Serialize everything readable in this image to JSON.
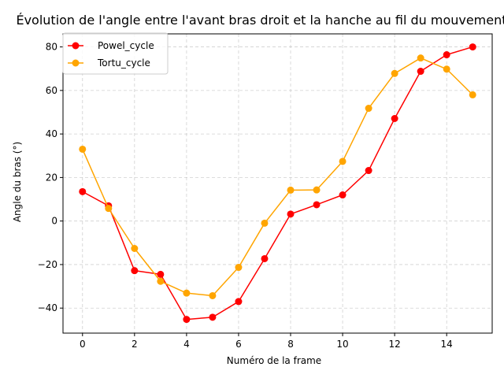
{
  "chart_data": {
    "type": "line",
    "title": "Évolution de l'angle entre l'avant bras droit et la hanche au fil du mouvement",
    "xlabel": "Numéro de la frame",
    "ylabel": "Angle du bras (°)",
    "xlim": [
      -0.75,
      15.75
    ],
    "ylim": [
      -51.5,
      86
    ],
    "x_ticks": [
      0,
      2,
      4,
      6,
      8,
      10,
      12,
      14
    ],
    "x_tick_labels": [
      "0",
      "2",
      "4",
      "6",
      "8",
      "10",
      "12",
      "14"
    ],
    "y_ticks": [
      -40,
      -20,
      0,
      20,
      40,
      60,
      80
    ],
    "y_tick_labels": [
      "−40",
      "−20",
      "0",
      "20",
      "40",
      "60",
      "80"
    ],
    "grid": true,
    "legend_position": "top-left",
    "x": [
      0,
      1,
      2,
      3,
      4,
      5,
      6,
      7,
      8,
      9,
      10,
      11,
      12,
      13,
      14,
      15
    ],
    "series": [
      {
        "name": "Powel_cycle",
        "color": "#ff0000",
        "values": [
          13.5,
          7,
          -22.8,
          -24.5,
          -45.2,
          -44.2,
          -37,
          -17.3,
          3.2,
          7.5,
          12,
          23.2,
          47.1,
          68.8,
          76.4,
          80
        ]
      },
      {
        "name": "Tortu_cycle",
        "color": "#ffa500",
        "values": [
          33,
          5.8,
          -12.6,
          -27.7,
          -33.1,
          -34.3,
          -21.3,
          -1,
          14.2,
          14.3,
          27.4,
          51.8,
          67.8,
          74.9,
          69.8,
          58
        ]
      }
    ]
  }
}
